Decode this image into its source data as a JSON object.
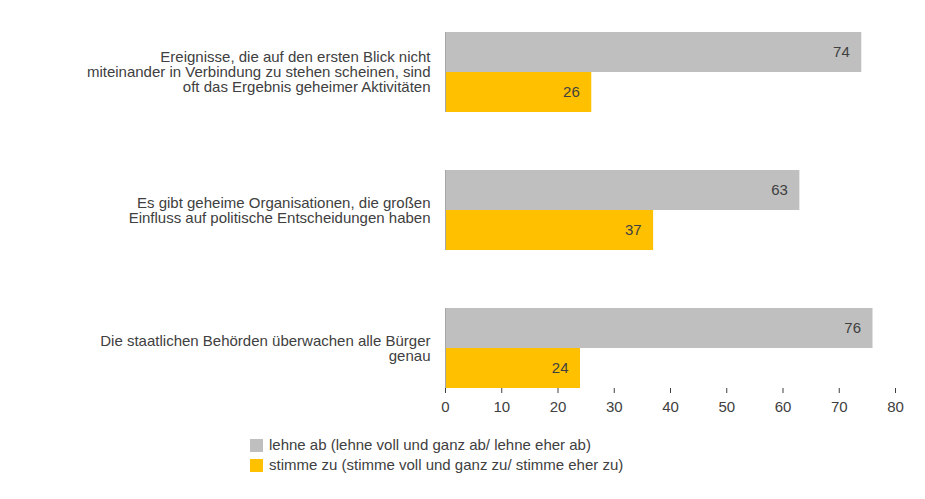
{
  "chart_data": {
    "type": "bar",
    "orientation": "horizontal",
    "categories": [
      "Ereignisse, die auf den ersten Blick nicht miteinander in Verbindung zu stehen scheinen, sind oft das Ergebnis geheimer Aktivitäten",
      "Es gibt geheime Organisationen, die großen Einfluss auf politische Entscheidungen haben",
      "Die staatlichen Behörden überwachen alle Bürger genau"
    ],
    "series": [
      {
        "name": "lehne ab (lehne voll und ganz ab/ lehne eher ab)",
        "color": "#bfbfbf",
        "values": [
          74,
          63,
          76
        ]
      },
      {
        "name": "stimme zu (stimme voll und ganz zu/ stimme eher zu)",
        "color": "#ffc000",
        "values": [
          26,
          37,
          24
        ]
      }
    ],
    "xlim": [
      0,
      80
    ],
    "xticks": [
      0,
      10,
      20,
      30,
      40,
      50,
      60,
      70,
      80
    ],
    "grid": false,
    "legend": "bottom",
    "data_labels": true
  }
}
